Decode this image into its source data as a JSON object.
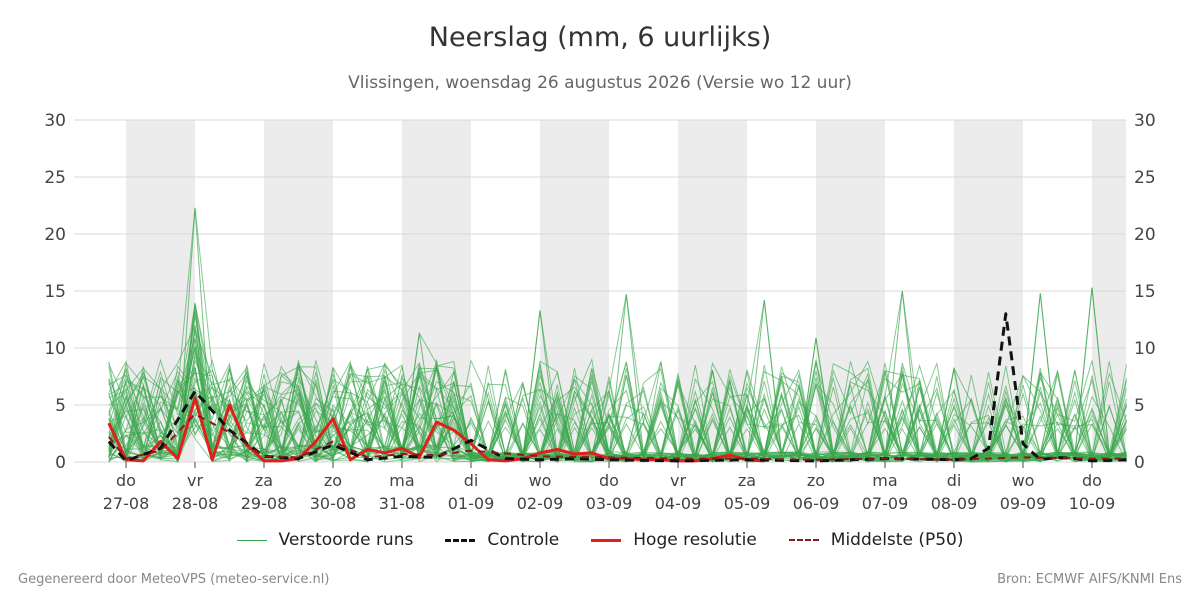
{
  "chart_data": {
    "type": "line",
    "title": "Neerslag (mm, 6 uurlijks)",
    "subtitle": "Vlissingen, woensdag 26 augustus 2026 (Versie wo 12 uur)",
    "ylim": [
      0,
      30
    ],
    "y_ticks": [
      0,
      5,
      10,
      15,
      20,
      25,
      30
    ],
    "grid": true,
    "x_axis": {
      "type": "date",
      "start": "2026-08-27T00:00",
      "end": "2026-09-10T12:00",
      "tick_labels": [
        {
          "day": "do",
          "date": "27-08"
        },
        {
          "day": "vr",
          "date": "28-08"
        },
        {
          "day": "za",
          "date": "29-08"
        },
        {
          "day": "zo",
          "date": "30-08"
        },
        {
          "day": "ma",
          "date": "31-08"
        },
        {
          "day": "di",
          "date": "01-09"
        },
        {
          "day": "wo",
          "date": "02-09"
        },
        {
          "day": "do",
          "date": "03-09"
        },
        {
          "day": "vr",
          "date": "04-09"
        },
        {
          "day": "za",
          "date": "05-09"
        },
        {
          "day": "zo",
          "date": "06-09"
        },
        {
          "day": "ma",
          "date": "07-09"
        },
        {
          "day": "di",
          "date": "08-09"
        },
        {
          "day": "wo",
          "date": "09-09"
        },
        {
          "day": "do",
          "date": "10-09"
        }
      ]
    },
    "series": [
      {
        "name": "Hoge resolutie",
        "color": "#e0201b",
        "style": "solid",
        "x": [
          "2026-08-26T18:00",
          "2026-08-27T00:00",
          "2026-08-27T06:00",
          "2026-08-27T12:00",
          "2026-08-27T18:00",
          "2026-08-28T00:00",
          "2026-08-28T06:00",
          "2026-08-28T12:00",
          "2026-08-28T18:00",
          "2026-08-29T00:00",
          "2026-08-29T06:00",
          "2026-08-29T12:00",
          "2026-08-29T18:00",
          "2026-08-30T00:00",
          "2026-08-30T06:00",
          "2026-08-30T12:00",
          "2026-08-30T18:00",
          "2026-08-31T00:00",
          "2026-08-31T06:00",
          "2026-08-31T12:00",
          "2026-08-31T18:00",
          "2026-09-01T00:00",
          "2026-09-01T06:00",
          "2026-09-01T12:00",
          "2026-09-01T18:00",
          "2026-09-02T00:00",
          "2026-09-02T06:00",
          "2026-09-02T12:00",
          "2026-09-02T18:00",
          "2026-09-03T00:00",
          "2026-09-03T06:00",
          "2026-09-03T12:00",
          "2026-09-03T18:00",
          "2026-09-04T00:00",
          "2026-09-04T06:00",
          "2026-09-04T12:00",
          "2026-09-04T18:00",
          "2026-09-05T00:00",
          "2026-09-05T06:00"
        ],
        "values": [
          3.4,
          0.2,
          0.1,
          1.8,
          0.3,
          5.6,
          0.2,
          5.0,
          1.5,
          0.1,
          0.1,
          0.3,
          1.8,
          3.8,
          0.2,
          1.1,
          0.8,
          1.2,
          0.4,
          3.5,
          2.8,
          1.6,
          0.2,
          0.1,
          0.3,
          0.8,
          1.1,
          0.7,
          0.8,
          0.3,
          0.3,
          0.2,
          0.2,
          0.1,
          0.1,
          0.3,
          0.6,
          0.2,
          0.1
        ]
      },
      {
        "name": "Controle",
        "color": "#111111",
        "style": "dashed",
        "x": [
          "2026-08-26T18:00",
          "2026-08-27T00:00",
          "2026-08-27T12:00",
          "2026-08-28T00:00",
          "2026-08-28T12:00",
          "2026-08-29T00:00",
          "2026-08-29T12:00",
          "2026-08-30T00:00",
          "2026-08-30T12:00",
          "2026-08-31T00:00",
          "2026-08-31T12:00",
          "2026-09-01T00:00",
          "2026-09-01T12:00",
          "2026-09-02T00:00",
          "2026-09-02T12:00",
          "2026-09-03T00:00",
          "2026-09-04T00:00",
          "2026-09-05T00:00",
          "2026-09-06T00:00",
          "2026-09-07T00:00",
          "2026-09-08T00:00",
          "2026-09-08T06:00",
          "2026-09-08T12:00",
          "2026-09-08T18:00",
          "2026-09-09T00:00",
          "2026-09-09T06:00",
          "2026-09-09T12:00",
          "2026-09-09T18:00",
          "2026-09-10T00:00",
          "2026-09-10T12:00"
        ],
        "values": [
          1.8,
          0.1,
          1.2,
          6.2,
          2.8,
          0.5,
          0.3,
          1.5,
          0.2,
          0.5,
          0.4,
          1.9,
          0.3,
          0.2,
          0.3,
          0.2,
          0.1,
          0.2,
          0.1,
          0.3,
          0.2,
          0.3,
          1.2,
          13.0,
          1.6,
          0.2,
          0.4,
          0.3,
          0.1,
          0.2
        ]
      },
      {
        "name": "Middelste (P50)",
        "color": "#8b1a1a",
        "style": "dashed",
        "x": [
          "2026-08-26T18:00",
          "2026-08-27T00:00",
          "2026-08-27T12:00",
          "2026-08-28T00:00",
          "2026-08-28T12:00",
          "2026-08-29T00:00",
          "2026-08-29T12:00",
          "2026-08-30T00:00",
          "2026-08-30T12:00",
          "2026-08-31T00:00",
          "2026-08-31T12:00",
          "2026-09-01T00:00",
          "2026-09-02T00:00",
          "2026-09-03T00:00",
          "2026-09-04T00:00",
          "2026-09-05T00:00",
          "2026-09-06T00:00",
          "2026-09-07T00:00",
          "2026-09-08T00:00",
          "2026-09-09T00:00",
          "2026-09-10T00:00",
          "2026-09-10T12:00"
        ],
        "values": [
          2.2,
          0.3,
          1.0,
          4.2,
          2.6,
          0.5,
          0.4,
          1.8,
          0.4,
          0.7,
          0.6,
          1.0,
          0.5,
          0.4,
          0.3,
          0.3,
          0.2,
          0.3,
          0.2,
          0.4,
          0.3,
          0.3
        ]
      }
    ],
    "ensemble": {
      "name": "Verstoorde runs",
      "color": "#3aa64c",
      "member_count": 50,
      "ylim_hint": [
        0,
        22.3
      ],
      "notable_peaks": [
        {
          "x": "2026-08-28T00:00",
          "value": 22.3
        },
        {
          "x": "2026-09-03T06:00",
          "value": 14.7
        },
        {
          "x": "2026-09-05T06:00",
          "value": 14.2
        },
        {
          "x": "2026-09-07T06:00",
          "value": 15.0
        },
        {
          "x": "2026-09-09T06:00",
          "value": 14.8
        },
        {
          "x": "2026-09-10T00:00",
          "value": 15.3
        },
        {
          "x": "2026-09-02T00:00",
          "value": 13.3
        },
        {
          "x": "2026-08-31T06:00",
          "value": 11.3
        },
        {
          "x": "2026-09-06T00:00",
          "value": 10.9
        }
      ]
    }
  },
  "legend": {
    "ensemble_label": "Verstoorde runs",
    "control_label": "Controle",
    "hires_label": "Hoge resolutie",
    "median_label": "Middelste (P50)"
  },
  "footer": {
    "left": "Gegenereerd door MeteoVPS (meteo-service.nl)",
    "right": "Bron: ECMWF AIFS/KNMI Ens"
  }
}
